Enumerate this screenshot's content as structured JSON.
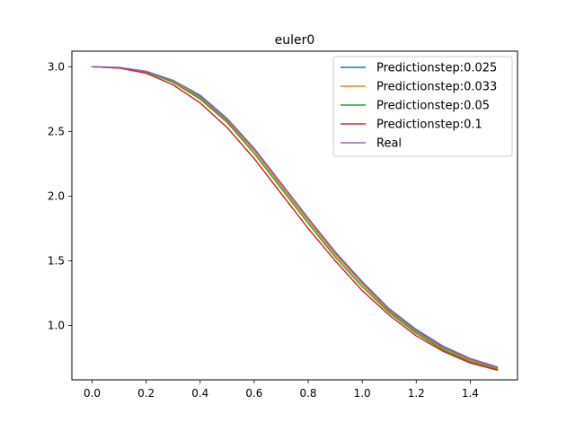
{
  "chart_data": {
    "type": "line",
    "title": "euler0",
    "xlabel": "",
    "ylabel": "",
    "xlim": [
      -0.075,
      1.575
    ],
    "ylim": [
      0.58,
      3.12
    ],
    "xticks": [
      0.0,
      0.2,
      0.4,
      0.6,
      0.8,
      1.0,
      1.2,
      1.4
    ],
    "yticks": [
      1.0,
      1.5,
      2.0,
      2.5,
      3.0
    ],
    "xtick_labels": [
      "0.0",
      "0.2",
      "0.4",
      "0.6",
      "0.8",
      "1.0",
      "1.2",
      "1.4"
    ],
    "ytick_labels": [
      "1.0",
      "1.5",
      "2.0",
      "2.5",
      "3.0"
    ],
    "grid": false,
    "legend_position": "top-right",
    "series": [
      {
        "name": "Predictionstep:0.025",
        "color": "#1f77b4",
        "x": [
          0.0,
          0.1,
          0.2,
          0.3,
          0.4,
          0.5,
          0.6,
          0.7,
          0.8,
          0.9,
          1.0,
          1.1,
          1.2,
          1.3,
          1.4,
          1.5
        ],
        "y": [
          3.0,
          2.99,
          2.96,
          2.89,
          2.77,
          2.59,
          2.36,
          2.09,
          1.82,
          1.56,
          1.33,
          1.12,
          0.96,
          0.83,
          0.74,
          0.67
        ]
      },
      {
        "name": "Predictionstep:0.033",
        "color": "#ff7f0e",
        "x": [
          0.0,
          0.1,
          0.2,
          0.3,
          0.4,
          0.5,
          0.6,
          0.7,
          0.8,
          0.9,
          1.0,
          1.1,
          1.2,
          1.3,
          1.4,
          1.5
        ],
        "y": [
          3.0,
          2.99,
          2.96,
          2.89,
          2.76,
          2.58,
          2.35,
          2.08,
          1.81,
          1.55,
          1.32,
          1.11,
          0.95,
          0.82,
          0.73,
          0.665
        ]
      },
      {
        "name": "Predictionstep:0.05",
        "color": "#2ca02c",
        "x": [
          0.0,
          0.1,
          0.2,
          0.3,
          0.4,
          0.5,
          0.6,
          0.7,
          0.8,
          0.9,
          1.0,
          1.1,
          1.2,
          1.3,
          1.4,
          1.5
        ],
        "y": [
          3.0,
          2.99,
          2.96,
          2.88,
          2.75,
          2.57,
          2.33,
          2.06,
          1.79,
          1.53,
          1.3,
          1.1,
          0.94,
          0.81,
          0.72,
          0.66
        ]
      },
      {
        "name": "Predictionstep:0.1",
        "color": "#d62728",
        "x": [
          0.0,
          0.1,
          0.2,
          0.3,
          0.4,
          0.5,
          0.6,
          0.7,
          0.8,
          0.9,
          1.0,
          1.1,
          1.2,
          1.3,
          1.4,
          1.5
        ],
        "y": [
          3.0,
          2.99,
          2.95,
          2.86,
          2.72,
          2.53,
          2.29,
          2.02,
          1.75,
          1.5,
          1.27,
          1.08,
          0.92,
          0.8,
          0.71,
          0.655
        ]
      },
      {
        "name": "Real",
        "color": "#9467bd",
        "x": [
          0.0,
          0.1,
          0.2,
          0.3,
          0.4,
          0.5,
          0.6,
          0.7,
          0.8,
          0.9,
          1.0,
          1.1,
          1.2,
          1.3,
          1.4,
          1.5
        ],
        "y": [
          3.0,
          2.995,
          2.965,
          2.895,
          2.78,
          2.6,
          2.37,
          2.1,
          1.83,
          1.57,
          1.34,
          1.13,
          0.97,
          0.84,
          0.745,
          0.68
        ]
      }
    ]
  }
}
